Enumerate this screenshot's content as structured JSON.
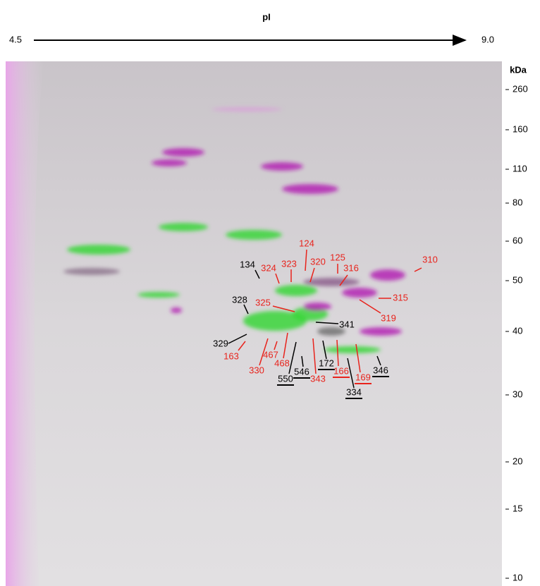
{
  "header": {
    "axis_title": "pI",
    "left_end": "4.5",
    "right_end": "9.0"
  },
  "mass_axis": {
    "unit": "kDa",
    "ticks": [
      "260",
      "160",
      "110",
      "80",
      "60",
      "50",
      "40",
      "30",
      "20",
      "15",
      "10"
    ]
  },
  "spots": [
    {
      "label": "310",
      "color": "#e8231c",
      "underline": false
    },
    {
      "label": "134",
      "color": "#000000",
      "underline": false
    },
    {
      "label": "324",
      "color": "#e8231c",
      "underline": false
    },
    {
      "label": "323",
      "color": "#e8231c",
      "underline": false
    },
    {
      "label": "124",
      "color": "#e8231c",
      "underline": false
    },
    {
      "label": "320",
      "color": "#e8231c",
      "underline": false
    },
    {
      "label": "125",
      "color": "#e8231c",
      "underline": false
    },
    {
      "label": "316",
      "color": "#e8231c",
      "underline": false
    },
    {
      "label": "315",
      "color": "#e8231c",
      "underline": false
    },
    {
      "label": "325",
      "color": "#e8231c",
      "underline": false
    },
    {
      "label": "319",
      "color": "#e8231c",
      "underline": false
    },
    {
      "label": "328",
      "color": "#000000",
      "underline": false
    },
    {
      "label": "341",
      "color": "#000000",
      "underline": false
    },
    {
      "label": "329",
      "color": "#000000",
      "underline": false
    },
    {
      "label": "163",
      "color": "#e8231c",
      "underline": false
    },
    {
      "label": "467",
      "color": "#e8231c",
      "underline": false
    },
    {
      "label": "330",
      "color": "#e8231c",
      "underline": false
    },
    {
      "label": "468",
      "color": "#e8231c",
      "underline": false
    },
    {
      "label": "546",
      "color": "#000000",
      "underline": true
    },
    {
      "label": "550",
      "color": "#000000",
      "underline": true
    },
    {
      "label": "172",
      "color": "#000000",
      "underline": true
    },
    {
      "label": "343",
      "color": "#e8231c",
      "underline": false
    },
    {
      "label": "166",
      "color": "#e8231c",
      "underline": true
    },
    {
      "label": "169",
      "color": "#e8231c",
      "underline": true
    },
    {
      "label": "334",
      "color": "#000000",
      "underline": true
    },
    {
      "label": "346",
      "color": "#000000",
      "underline": true
    }
  ]
}
